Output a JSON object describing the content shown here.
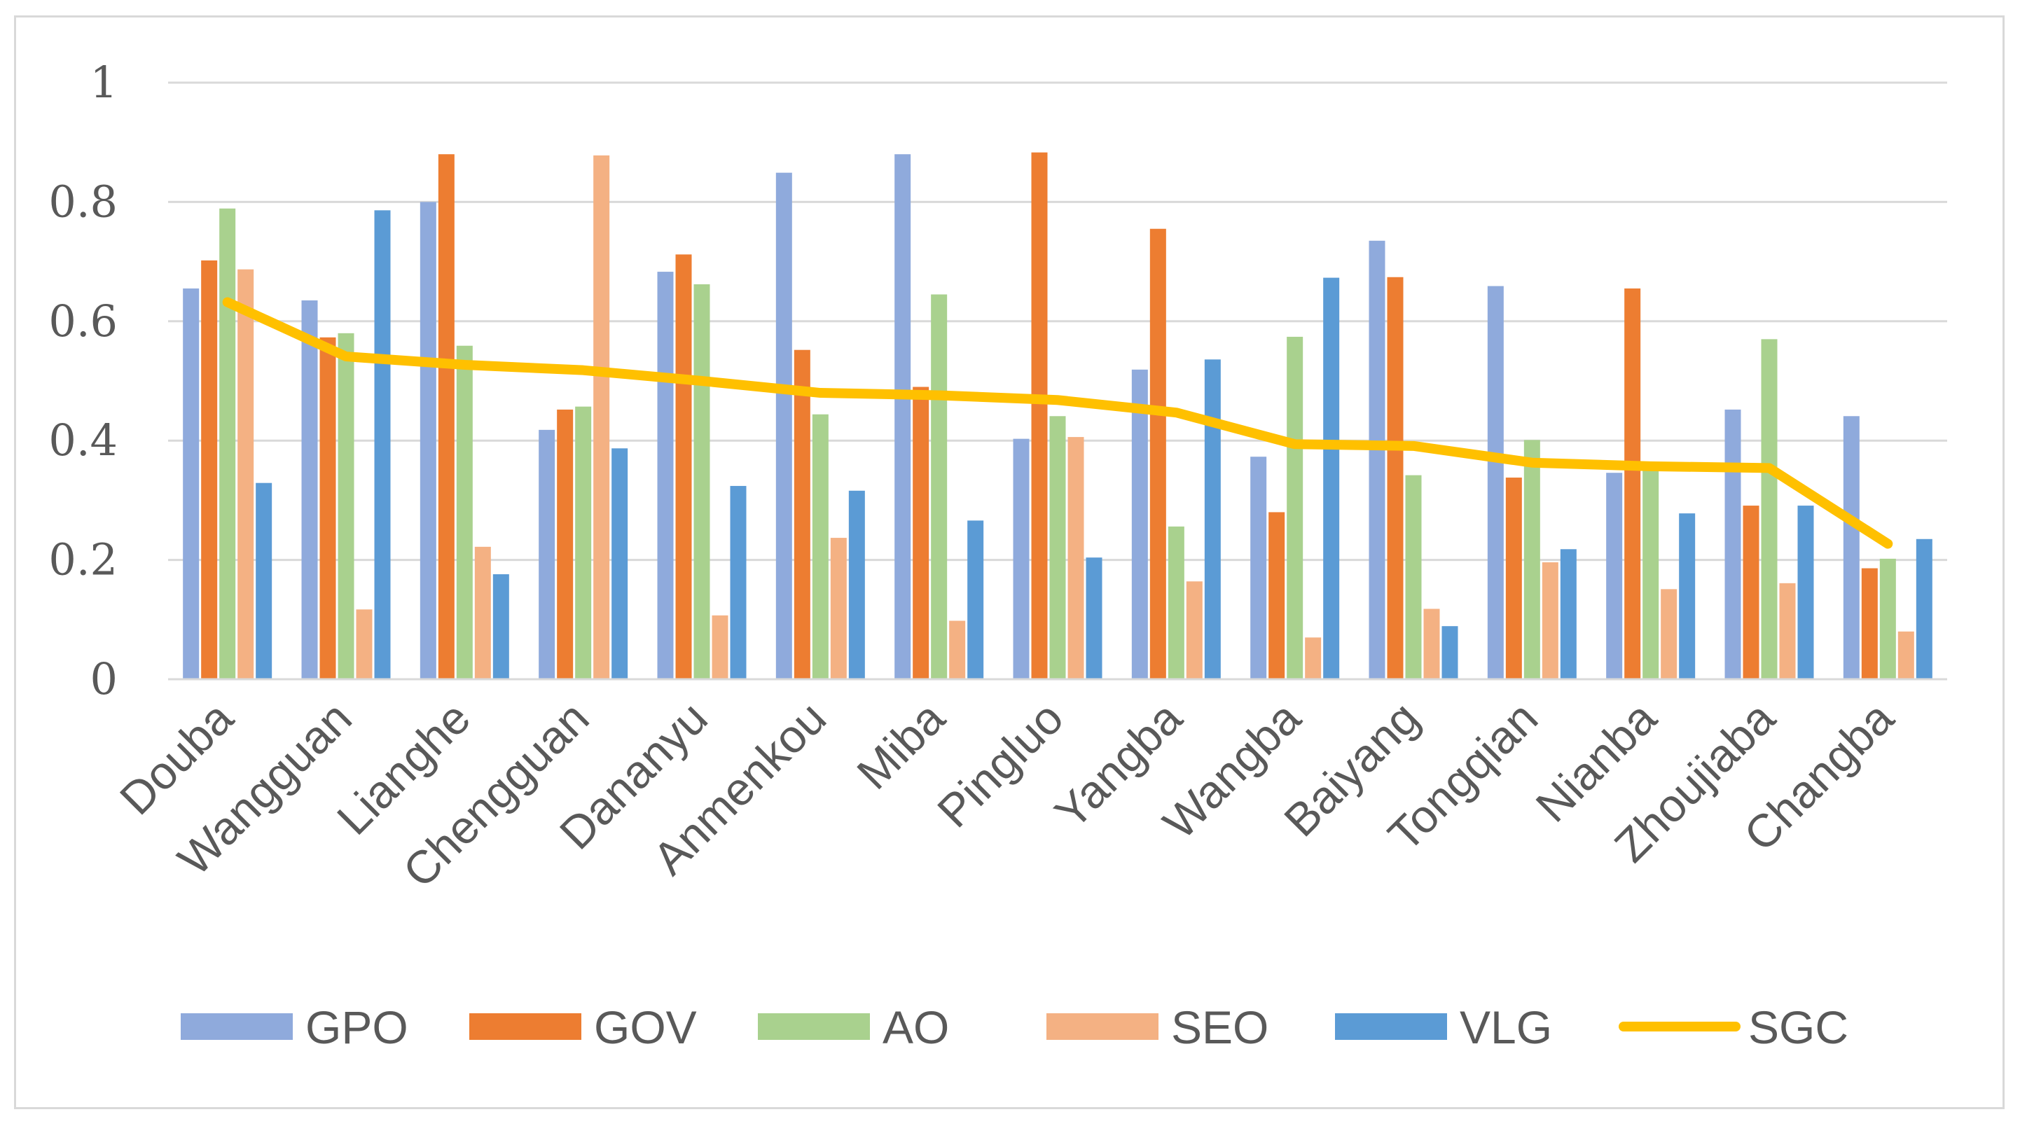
{
  "chart_data": {
    "type": "bar",
    "title": "",
    "xlabel": "",
    "ylabel": "",
    "ylim": [
      0,
      1
    ],
    "yticks": [
      "0",
      "0.2",
      "0.4",
      "0.6",
      "0.8",
      "1"
    ],
    "grid": true,
    "legend_position": "bottom",
    "categories": [
      "Douba",
      "Wangguan",
      "Lianghe",
      "Chengguan",
      "Dananyu",
      "Anmenkou",
      "Miba",
      "Pingluo",
      "Yangba",
      "Wangba",
      "Baiyang",
      "Tongqian",
      "Nianba",
      "Zhoujiaba",
      "Changba"
    ],
    "series": [
      {
        "name": "GPO",
        "kind": "bar",
        "color": "#8faadc",
        "values": [
          0.655,
          0.635,
          0.8,
          0.418,
          0.683,
          0.849,
          0.88,
          0.403,
          0.519,
          0.373,
          0.735,
          0.659,
          0.346,
          0.452,
          0.441
        ]
      },
      {
        "name": "GOV",
        "kind": "bar",
        "color": "#ed7d31",
        "values": [
          0.702,
          0.573,
          0.88,
          0.452,
          0.712,
          0.552,
          0.49,
          0.883,
          0.755,
          0.28,
          0.674,
          0.338,
          0.655,
          0.291,
          0.186
        ]
      },
      {
        "name": "AO",
        "kind": "bar",
        "color": "#a9d18e",
        "values": [
          0.789,
          0.58,
          0.559,
          0.457,
          0.662,
          0.444,
          0.645,
          0.441,
          0.256,
          0.574,
          0.342,
          0.401,
          0.357,
          0.57,
          0.202
        ]
      },
      {
        "name": "SEO",
        "kind": "bar",
        "color": "#f4b183",
        "values": [
          0.687,
          0.117,
          0.222,
          0.878,
          0.107,
          0.237,
          0.098,
          0.406,
          0.164,
          0.07,
          0.118,
          0.196,
          0.151,
          0.161,
          0.08
        ]
      },
      {
        "name": "VLG",
        "kind": "bar",
        "color": "#5b9bd5",
        "values": [
          0.329,
          0.786,
          0.176,
          0.387,
          0.324,
          0.316,
          0.266,
          0.204,
          0.536,
          0.673,
          0.089,
          0.218,
          0.278,
          0.291,
          0.235
        ]
      },
      {
        "name": "SGC",
        "kind": "line",
        "color": "#ffc000",
        "values": [
          0.632,
          0.541,
          0.527,
          0.518,
          0.5,
          0.48,
          0.476,
          0.468,
          0.447,
          0.394,
          0.391,
          0.363,
          0.357,
          0.354,
          0.227
        ]
      }
    ]
  }
}
